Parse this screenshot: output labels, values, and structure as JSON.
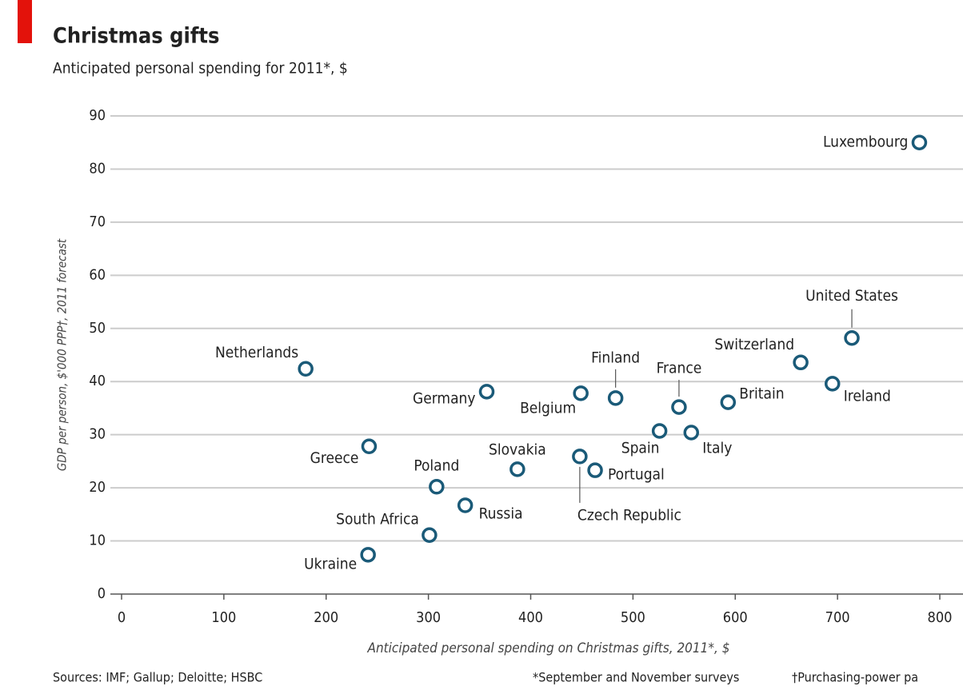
{
  "chart_data": {
    "type": "scatter",
    "title": "Christmas gifts",
    "subtitle": "Anticipated personal spending for 2011*, $",
    "x_label": "Anticipated personal spending on Christmas gifts, 2011*, $",
    "y_label": "GDP per person, $'000 PPP†, 2011 forecast",
    "source": "Sources: IMF; Gallup; Deloitte; HSBC",
    "footnotes": [
      "*September and November surveys",
      "†Purchasing-power pa"
    ],
    "color": "#1a5a78",
    "grid": true,
    "xlim": [
      0,
      800
    ],
    "xticks": [
      0,
      100,
      200,
      300,
      400,
      500,
      600,
      700,
      800
    ],
    "ylim": [
      0,
      90
    ],
    "yticks": [
      0,
      10,
      20,
      30,
      40,
      50,
      60,
      70,
      80,
      90
    ],
    "labels": [
      "Luxembourg",
      "United States",
      "Switzerland",
      "Ireland",
      "Britain",
      "France",
      "Italy",
      "Spain",
      "Finland",
      "Belgium",
      "Portugal",
      "Czech Republic",
      "Slovakia",
      "Germany",
      "Netherlands",
      "Greece",
      "Poland",
      "Russia",
      "South Africa",
      "Ukraine"
    ],
    "x": [
      780,
      714,
      664,
      695,
      593,
      545,
      557,
      526,
      483,
      449,
      463,
      448,
      387,
      357,
      180,
      242,
      308,
      336,
      301,
      241
    ],
    "values": [
      85,
      48.2,
      43.6,
      39.6,
      36.1,
      35.2,
      30.4,
      30.7,
      36.9,
      37.8,
      23.3,
      25.9,
      23.5,
      38.1,
      42.4,
      27.8,
      20.2,
      16.7,
      11.1,
      7.4
    ]
  }
}
